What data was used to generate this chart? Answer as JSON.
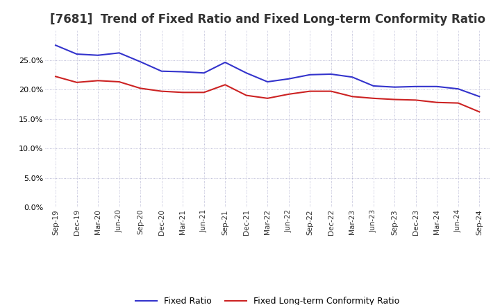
{
  "title": "[7681]  Trend of Fixed Ratio and Fixed Long-term Conformity Ratio",
  "x_labels": [
    "Sep-19",
    "Dec-19",
    "Mar-20",
    "Jun-20",
    "Sep-20",
    "Dec-20",
    "Mar-21",
    "Jun-21",
    "Sep-21",
    "Dec-21",
    "Mar-22",
    "Jun-22",
    "Sep-22",
    "Dec-22",
    "Mar-23",
    "Jun-23",
    "Sep-23",
    "Dec-23",
    "Mar-24",
    "Jun-24",
    "Sep-24"
  ],
  "fixed_ratio": [
    27.5,
    26.0,
    25.8,
    26.2,
    24.7,
    23.1,
    23.0,
    22.8,
    24.6,
    22.8,
    21.3,
    21.8,
    22.5,
    22.6,
    22.1,
    20.6,
    20.4,
    20.5,
    20.5,
    20.1,
    18.8
  ],
  "fixed_lt_ratio": [
    22.2,
    21.2,
    21.5,
    21.3,
    20.2,
    19.7,
    19.5,
    19.5,
    20.8,
    19.0,
    18.5,
    19.2,
    19.7,
    19.7,
    18.8,
    18.5,
    18.3,
    18.2,
    17.8,
    17.7,
    16.2
  ],
  "fixed_ratio_color": "#3333cc",
  "fixed_lt_ratio_color": "#cc2222",
  "ylim": [
    0.0,
    30.0
  ],
  "yticks": [
    0.0,
    5.0,
    10.0,
    15.0,
    20.0,
    25.0
  ],
  "background_color": "#ffffff",
  "grid_color": "#aaaacc",
  "title_fontsize": 12,
  "legend_fixed": "Fixed Ratio",
  "legend_lt": "Fixed Long-term Conformity Ratio"
}
